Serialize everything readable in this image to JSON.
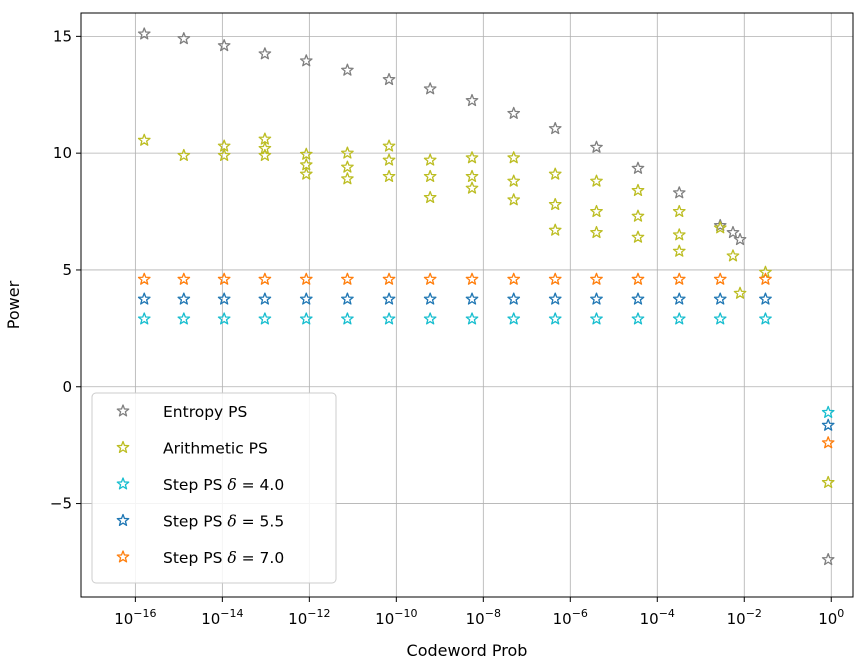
{
  "chart_data": {
    "type": "scatter",
    "title": "",
    "xlabel": "Codeword Prob",
    "ylabel": "Power",
    "xscale": "log",
    "xlim_exp": [
      -17.25,
      0.5
    ],
    "ylim": [
      -9,
      16
    ],
    "grid": true,
    "marker": "star-outline",
    "x_ticks": [
      {
        "exp": -16,
        "base": "10",
        "sup": "−16"
      },
      {
        "exp": -14,
        "base": "10",
        "sup": "−14"
      },
      {
        "exp": -12,
        "base": "10",
        "sup": "−12"
      },
      {
        "exp": -10,
        "base": "10",
        "sup": "−10"
      },
      {
        "exp": -8,
        "base": "10",
        "sup": "−8"
      },
      {
        "exp": -6,
        "base": "10",
        "sup": "−6"
      },
      {
        "exp": -4,
        "base": "10",
        "sup": "−4"
      },
      {
        "exp": -2,
        "base": "10",
        "sup": "−2"
      },
      {
        "exp": 0,
        "base": "10",
        "sup": "0"
      }
    ],
    "y_ticks": [
      {
        "value": 15,
        "label": "15"
      },
      {
        "value": 10,
        "label": "10"
      },
      {
        "value": 5,
        "label": "5"
      },
      {
        "value": 0,
        "label": "0"
      },
      {
        "value": -5,
        "label": "−5"
      }
    ],
    "legend": {
      "position": "lower-left",
      "entries": [
        {
          "prefix": "Entropy PS",
          "delta": "",
          "series": 0
        },
        {
          "prefix": "Arithmetic PS",
          "delta": "",
          "series": 1
        },
        {
          "prefix": "Step PS ",
          "delta": "4.0",
          "series": 2
        },
        {
          "prefix": "Step PS ",
          "delta": "5.5",
          "series": 3
        },
        {
          "prefix": "Step PS ",
          "delta": "7.0",
          "series": 4
        }
      ]
    },
    "series": [
      {
        "name": "Entropy PS",
        "color": "#7f7f7f",
        "points": [
          [
            1.6e-16,
            15.1
          ],
          [
            1.3e-15,
            14.9
          ],
          [
            1.1e-14,
            14.6
          ],
          [
            9.5e-14,
            14.25
          ],
          [
            8.5e-13,
            13.95
          ],
          [
            7.5e-12,
            13.55
          ],
          [
            6.8e-11,
            13.15
          ],
          [
            6e-10,
            12.75
          ],
          [
            5.5e-09,
            12.25
          ],
          [
            5e-08,
            11.7
          ],
          [
            4.5e-07,
            11.05
          ],
          [
            4e-06,
            10.25
          ],
          [
            3.6e-05,
            9.35
          ],
          [
            0.00032,
            8.3
          ],
          [
            0.0028,
            6.9
          ],
          [
            0.0055,
            6.6
          ],
          [
            0.008,
            6.3
          ],
          [
            0.85,
            -7.4
          ]
        ]
      },
      {
        "name": "Arithmetic PS",
        "color": "#bcbd22",
        "points": [
          [
            1.6e-16,
            10.55
          ],
          [
            1.3e-15,
            9.9
          ],
          [
            1.1e-14,
            10.3
          ],
          [
            1.1e-14,
            9.9
          ],
          [
            9.5e-14,
            10.6
          ],
          [
            9.5e-14,
            10.2
          ],
          [
            9.5e-14,
            9.9
          ],
          [
            8.5e-13,
            9.95
          ],
          [
            8.5e-13,
            9.5
          ],
          [
            8.5e-13,
            9.1
          ],
          [
            7.5e-12,
            10.0
          ],
          [
            7.5e-12,
            9.4
          ],
          [
            7.5e-12,
            8.9
          ],
          [
            6.8e-11,
            10.3
          ],
          [
            6.8e-11,
            9.7
          ],
          [
            6.8e-11,
            9.0
          ],
          [
            6e-10,
            9.7
          ],
          [
            6e-10,
            9.0
          ],
          [
            6e-10,
            8.1
          ],
          [
            5.5e-09,
            9.8
          ],
          [
            5.5e-09,
            9.0
          ],
          [
            5.5e-09,
            8.5
          ],
          [
            5e-08,
            9.8
          ],
          [
            5e-08,
            8.8
          ],
          [
            5e-08,
            8.0
          ],
          [
            4.5e-07,
            9.1
          ],
          [
            4.5e-07,
            7.8
          ],
          [
            4.5e-07,
            6.7
          ],
          [
            4e-06,
            8.8
          ],
          [
            4e-06,
            7.5
          ],
          [
            4e-06,
            6.6
          ],
          [
            3.6e-05,
            8.4
          ],
          [
            3.6e-05,
            7.3
          ],
          [
            3.6e-05,
            6.4
          ],
          [
            0.00032,
            7.5
          ],
          [
            0.00032,
            6.5
          ],
          [
            0.00032,
            5.8
          ],
          [
            0.0028,
            6.8
          ],
          [
            0.0055,
            5.6
          ],
          [
            0.008,
            4.0
          ],
          [
            0.0307,
            4.9
          ],
          [
            0.85,
            -4.1
          ]
        ]
      },
      {
        "name": "Step PS δ = 4.0",
        "color": "#17becf",
        "points": [
          [
            1.6e-16,
            2.9
          ],
          [
            1.3e-15,
            2.9
          ],
          [
            1.1e-14,
            2.9
          ],
          [
            9.5e-14,
            2.9
          ],
          [
            8.5e-13,
            2.9
          ],
          [
            7.5e-12,
            2.9
          ],
          [
            6.8e-11,
            2.9
          ],
          [
            6e-10,
            2.9
          ],
          [
            5.5e-09,
            2.9
          ],
          [
            5e-08,
            2.9
          ],
          [
            4.5e-07,
            2.9
          ],
          [
            4e-06,
            2.9
          ],
          [
            3.6e-05,
            2.9
          ],
          [
            0.00032,
            2.9
          ],
          [
            0.0028,
            2.9
          ],
          [
            0.0307,
            2.9
          ],
          [
            0.85,
            -1.1
          ]
        ]
      },
      {
        "name": "Step PS δ = 5.5",
        "color": "#1f77b4",
        "points": [
          [
            1.6e-16,
            3.75
          ],
          [
            1.3e-15,
            3.75
          ],
          [
            1.1e-14,
            3.75
          ],
          [
            9.5e-14,
            3.75
          ],
          [
            8.5e-13,
            3.75
          ],
          [
            7.5e-12,
            3.75
          ],
          [
            6.8e-11,
            3.75
          ],
          [
            6e-10,
            3.75
          ],
          [
            5.5e-09,
            3.75
          ],
          [
            5e-08,
            3.75
          ],
          [
            4.5e-07,
            3.75
          ],
          [
            4e-06,
            3.75
          ],
          [
            3.6e-05,
            3.75
          ],
          [
            0.00032,
            3.75
          ],
          [
            0.0028,
            3.75
          ],
          [
            0.0307,
            3.75
          ],
          [
            0.85,
            -1.65
          ]
        ]
      },
      {
        "name": "Step PS δ = 7.0",
        "color": "#ff7f0e",
        "points": [
          [
            1.6e-16,
            4.6
          ],
          [
            1.3e-15,
            4.6
          ],
          [
            1.1e-14,
            4.6
          ],
          [
            9.5e-14,
            4.6
          ],
          [
            8.5e-13,
            4.6
          ],
          [
            7.5e-12,
            4.6
          ],
          [
            6.8e-11,
            4.6
          ],
          [
            6e-10,
            4.6
          ],
          [
            5.5e-09,
            4.6
          ],
          [
            5e-08,
            4.6
          ],
          [
            4.5e-07,
            4.6
          ],
          [
            4e-06,
            4.6
          ],
          [
            3.6e-05,
            4.6
          ],
          [
            0.00032,
            4.6
          ],
          [
            0.0028,
            4.6
          ],
          [
            0.0307,
            4.6
          ],
          [
            0.85,
            -2.4
          ]
        ]
      }
    ]
  }
}
